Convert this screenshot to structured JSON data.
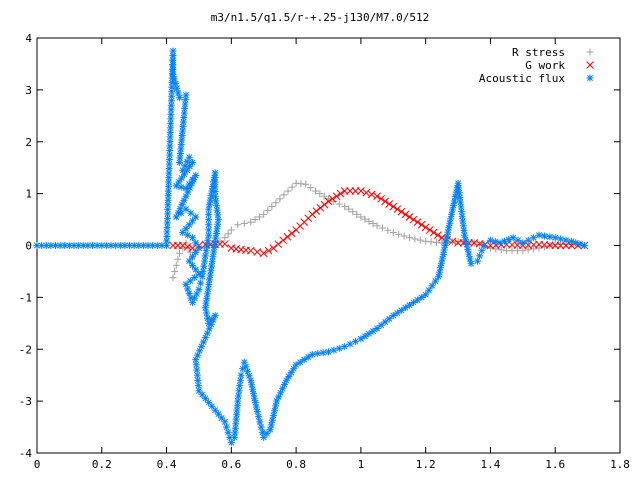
{
  "chart_data": {
    "type": "scatter",
    "title": "m3/n1.5/q1.5/r-+.25-j130/M7.0/512",
    "xlabel": "",
    "ylabel": "",
    "xlim": [
      0,
      1.8
    ],
    "ylim": [
      -4,
      4
    ],
    "x_ticks": [
      "0",
      "0.2",
      "0.4",
      "0.6",
      "0.8",
      "1",
      "1.2",
      "1.4",
      "1.6",
      "1.8"
    ],
    "y_ticks": [
      "4",
      "3",
      "2",
      "1",
      "0",
      "-1",
      "-2",
      "-3",
      "-4"
    ],
    "grid": false,
    "legend_position": "top-right",
    "series": [
      {
        "name": "R stress",
        "marker": "plus",
        "color": "#a0a0a0",
        "points": [
          [
            0.42,
            -0.62
          ],
          [
            0.43,
            -0.38
          ],
          [
            0.44,
            -0.15
          ],
          [
            0.46,
            0.05
          ],
          [
            0.48,
            -0.22
          ],
          [
            0.5,
            -0.05
          ],
          [
            0.55,
            0.02
          ],
          [
            0.58,
            0.15
          ],
          [
            0.6,
            0.3
          ],
          [
            0.62,
            0.4
          ],
          [
            0.66,
            0.45
          ],
          [
            0.7,
            0.6
          ],
          [
            0.75,
            0.9
          ],
          [
            0.8,
            1.2
          ],
          [
            0.83,
            1.18
          ],
          [
            0.86,
            1.05
          ],
          [
            0.9,
            0.9
          ],
          [
            0.95,
            0.75
          ],
          [
            1.0,
            0.55
          ],
          [
            1.05,
            0.38
          ],
          [
            1.1,
            0.25
          ],
          [
            1.15,
            0.15
          ],
          [
            1.2,
            0.08
          ],
          [
            1.25,
            0.05
          ],
          [
            1.3,
            0.08
          ],
          [
            1.35,
            0.05
          ],
          [
            1.4,
            -0.05
          ],
          [
            1.45,
            -0.1
          ],
          [
            1.5,
            -0.1
          ],
          [
            1.55,
            -0.05
          ],
          [
            1.6,
            0.02
          ],
          [
            1.65,
            0.02
          ],
          [
            1.69,
            0.0
          ]
        ]
      },
      {
        "name": "G work",
        "marker": "cross",
        "color": "#ff0000",
        "points": [
          [
            0.42,
            0.0
          ],
          [
            0.45,
            0.0
          ],
          [
            0.48,
            -0.05
          ],
          [
            0.5,
            0.0
          ],
          [
            0.52,
            0.02
          ],
          [
            0.55,
            0.02
          ],
          [
            0.58,
            0.03
          ],
          [
            0.6,
            -0.05
          ],
          [
            0.63,
            -0.08
          ],
          [
            0.66,
            -0.1
          ],
          [
            0.7,
            -0.15
          ],
          [
            0.73,
            -0.05
          ],
          [
            0.76,
            0.1
          ],
          [
            0.8,
            0.3
          ],
          [
            0.85,
            0.6
          ],
          [
            0.9,
            0.85
          ],
          [
            0.95,
            1.05
          ],
          [
            1.0,
            1.05
          ],
          [
            1.05,
            0.95
          ],
          [
            1.1,
            0.75
          ],
          [
            1.15,
            0.55
          ],
          [
            1.2,
            0.35
          ],
          [
            1.25,
            0.15
          ],
          [
            1.3,
            0.05
          ],
          [
            1.35,
            0.05
          ],
          [
            1.4,
            0.0
          ],
          [
            1.45,
            0.02
          ],
          [
            1.5,
            0.0
          ],
          [
            1.55,
            0.02
          ],
          [
            1.6,
            0.0
          ],
          [
            1.65,
            0.0
          ],
          [
            1.69,
            0.0
          ]
        ]
      },
      {
        "name": "Acoustic flux",
        "marker": "star",
        "color": "#0080ff",
        "points": [
          [
            0.0,
            0.0
          ],
          [
            0.1,
            0.0
          ],
          [
            0.2,
            0.0
          ],
          [
            0.3,
            0.0
          ],
          [
            0.4,
            0.0
          ],
          [
            0.42,
            3.75
          ],
          [
            0.42,
            3.3
          ],
          [
            0.44,
            2.85
          ],
          [
            0.46,
            2.9
          ],
          [
            0.44,
            1.6
          ],
          [
            0.45,
            1.45
          ],
          [
            0.47,
            1.7
          ],
          [
            0.48,
            1.6
          ],
          [
            0.43,
            1.15
          ],
          [
            0.46,
            1.1
          ],
          [
            0.49,
            1.35
          ],
          [
            0.43,
            0.55
          ],
          [
            0.46,
            0.7
          ],
          [
            0.49,
            0.55
          ],
          [
            0.45,
            0.25
          ],
          [
            0.48,
            0.15
          ],
          [
            0.5,
            -0.05
          ],
          [
            0.47,
            -0.3
          ],
          [
            0.5,
            -0.55
          ],
          [
            0.46,
            -0.75
          ],
          [
            0.48,
            -1.1
          ],
          [
            0.5,
            -0.85
          ],
          [
            0.51,
            -0.6
          ],
          [
            0.52,
            -0.2
          ],
          [
            0.53,
            0.2
          ],
          [
            0.53,
            0.7
          ],
          [
            0.54,
            1.05
          ],
          [
            0.55,
            1.4
          ],
          [
            0.55,
            0.95
          ],
          [
            0.56,
            0.5
          ],
          [
            0.52,
            -1.2
          ],
          [
            0.53,
            -1.5
          ],
          [
            0.55,
            -1.35
          ],
          [
            0.49,
            -2.2
          ],
          [
            0.5,
            -2.8
          ],
          [
            0.58,
            -3.4
          ],
          [
            0.59,
            -3.6
          ],
          [
            0.6,
            -3.8
          ],
          [
            0.61,
            -3.7
          ],
          [
            0.62,
            -3.0
          ],
          [
            0.63,
            -2.5
          ],
          [
            0.64,
            -2.25
          ],
          [
            0.66,
            -2.6
          ],
          [
            0.68,
            -3.2
          ],
          [
            0.7,
            -3.7
          ],
          [
            0.72,
            -3.55
          ],
          [
            0.74,
            -3.0
          ],
          [
            0.77,
            -2.6
          ],
          [
            0.8,
            -2.3
          ],
          [
            0.85,
            -2.1
          ],
          [
            0.9,
            -2.05
          ],
          [
            0.95,
            -1.95
          ],
          [
            1.0,
            -1.8
          ],
          [
            1.05,
            -1.6
          ],
          [
            1.1,
            -1.35
          ],
          [
            1.15,
            -1.15
          ],
          [
            1.2,
            -0.95
          ],
          [
            1.24,
            -0.6
          ],
          [
            1.26,
            0.0
          ],
          [
            1.28,
            0.6
          ],
          [
            1.3,
            1.2
          ],
          [
            1.32,
            0.2
          ],
          [
            1.34,
            -0.35
          ],
          [
            1.36,
            -0.3
          ],
          [
            1.38,
            0.0
          ],
          [
            1.4,
            0.1
          ],
          [
            1.43,
            0.05
          ],
          [
            1.47,
            0.15
          ],
          [
            1.5,
            0.05
          ],
          [
            1.55,
            0.2
          ],
          [
            1.6,
            0.15
          ],
          [
            1.65,
            0.08
          ],
          [
            1.69,
            0.0
          ]
        ]
      }
    ]
  }
}
